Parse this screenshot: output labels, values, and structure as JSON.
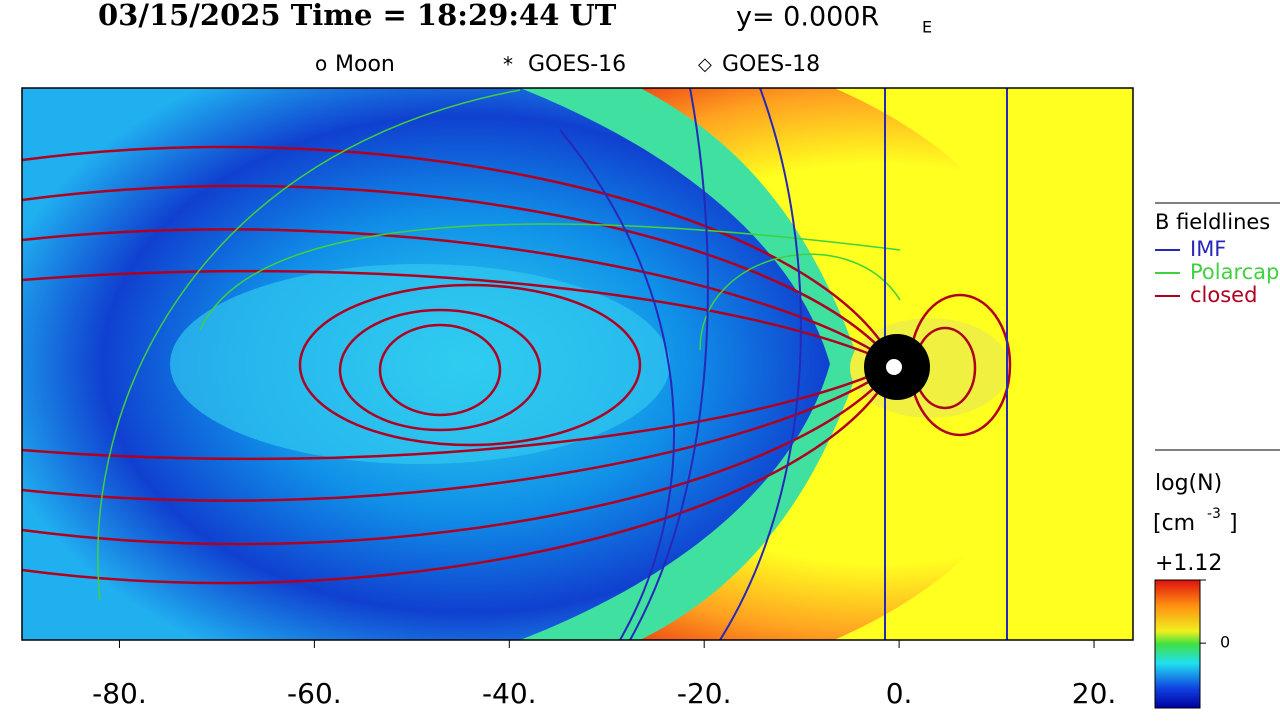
{
  "chart_data": {
    "type": "contour",
    "title": "03/15/2025 Time = 18:29:44 UT",
    "plane_label": "y= 0.000R",
    "plane_label_subscript": "E",
    "markers_legend": [
      "Moon",
      "GOES-16",
      "GOES-18"
    ],
    "xlim": [
      -90,
      24
    ],
    "xticks": [
      {
        "value": -80,
        "label": "-80."
      },
      {
        "value": -60,
        "label": "-60."
      },
      {
        "value": -40,
        "label": "-40."
      },
      {
        "value": -20,
        "label": "-20."
      },
      {
        "value": 0,
        "label": "0."
      },
      {
        "value": 20,
        "label": "20."
      }
    ],
    "fieldline_legend": {
      "title": "B fieldlines",
      "series": [
        {
          "name": "IMF",
          "color": "#2828b8"
        },
        {
          "name": "Polarcap",
          "color": "#40d040"
        },
        {
          "name": "closed",
          "color": "#b00020"
        }
      ]
    },
    "colorbar": {
      "title": "log(N)",
      "unit": "[cm",
      "unit_sup": "-3",
      "unit_end": "]",
      "lim": [
        -1.15,
        1.12
      ],
      "ticks": [
        {
          "value": 1.12,
          "label": "+1.12"
        },
        0
      ]
    }
  }
}
